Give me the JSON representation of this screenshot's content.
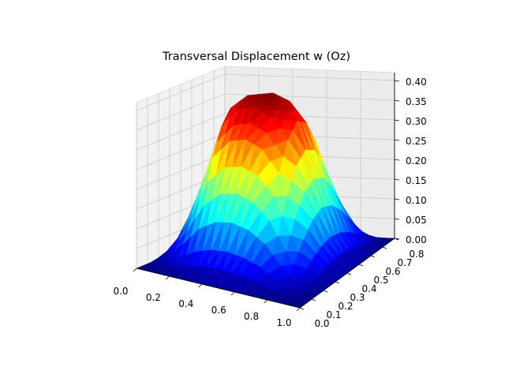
{
  "chart_data": {
    "type": "surface3d",
    "title": "Transversal Displacement w (Oz)",
    "xlabel": "",
    "ylabel": "",
    "zlabel": "",
    "xlim": [
      0,
      1
    ],
    "ylim": [
      0,
      0.8
    ],
    "zlim": [
      0,
      0.42
    ],
    "x_ticks": [
      "0.0",
      "0.2",
      "0.4",
      "0.6",
      "0.8",
      "1.0"
    ],
    "y_ticks": [
      "0.0",
      "0.1",
      "0.2",
      "0.3",
      "0.4",
      "0.5",
      "0.6",
      "0.7",
      "0.8"
    ],
    "z_ticks": [
      "0.00",
      "0.05",
      "0.10",
      "0.15",
      "0.20",
      "0.25",
      "0.30",
      "0.35",
      "0.40"
    ],
    "x_tick_values": [
      0,
      0.2,
      0.4,
      0.6,
      0.8,
      1.0
    ],
    "y_tick_values": [
      0,
      0.1,
      0.2,
      0.3,
      0.4,
      0.5,
      0.6,
      0.7,
      0.8
    ],
    "z_tick_values": [
      0,
      0.05,
      0.1,
      0.15,
      0.2,
      0.25,
      0.3,
      0.35,
      0.4
    ],
    "grid": true,
    "colormap": "jet",
    "grid_x": [
      0,
      0.1,
      0.2,
      0.3,
      0.4,
      0.5,
      0.6,
      0.7,
      0.8,
      0.9,
      1.0
    ],
    "grid_y": [
      0,
      0.08,
      0.16,
      0.24,
      0.32,
      0.4,
      0.48,
      0.56,
      0.64,
      0.72,
      0.8
    ],
    "z_values": [
      [
        0,
        0,
        0,
        0,
        0,
        0,
        0,
        0,
        0,
        0,
        0
      ],
      [
        0,
        0.012,
        0.036,
        0.062,
        0.08,
        0.088,
        0.082,
        0.066,
        0.043,
        0.02,
        0
      ],
      [
        0,
        0.034,
        0.093,
        0.16,
        0.213,
        0.234,
        0.22,
        0.177,
        0.117,
        0.052,
        0
      ],
      [
        0,
        0.06,
        0.165,
        0.275,
        0.344,
        0.378,
        0.357,
        0.295,
        0.196,
        0.087,
        0
      ],
      [
        0,
        0.074,
        0.202,
        0.324,
        0.392,
        0.415,
        0.405,
        0.34,
        0.224,
        0.1,
        0
      ],
      [
        0,
        0.078,
        0.212,
        0.336,
        0.406,
        0.42,
        0.414,
        0.35,
        0.232,
        0.104,
        0
      ],
      [
        0,
        0.072,
        0.198,
        0.318,
        0.386,
        0.41,
        0.398,
        0.333,
        0.22,
        0.098,
        0
      ],
      [
        0,
        0.058,
        0.16,
        0.266,
        0.335,
        0.368,
        0.348,
        0.286,
        0.19,
        0.085,
        0
      ],
      [
        0,
        0.033,
        0.091,
        0.156,
        0.208,
        0.228,
        0.214,
        0.172,
        0.114,
        0.05,
        0
      ],
      [
        0,
        0.012,
        0.035,
        0.06,
        0.078,
        0.086,
        0.08,
        0.064,
        0.042,
        0.019,
        0
      ],
      [
        0,
        0,
        0,
        0,
        0,
        0,
        0,
        0,
        0,
        0,
        0
      ]
    ]
  }
}
